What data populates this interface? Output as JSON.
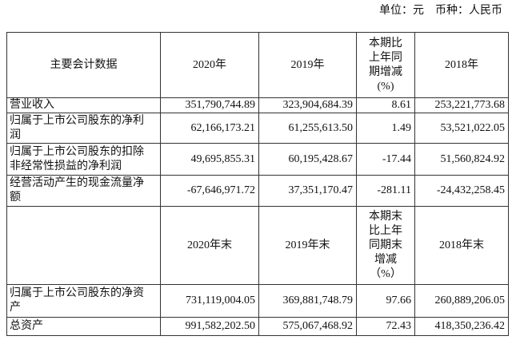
{
  "header": {
    "unit": "单位：元　币种：人民币"
  },
  "table": {
    "rows": [
      [
        "主要会计数据",
        "2020年",
        "2019年",
        "本期比上年同期增减(%)",
        "2018年"
      ],
      [
        "营业收入",
        "351,790,744.89",
        "323,904,684.39",
        "8.61",
        "253,221,773.68"
      ],
      [
        "归属于上市公司股东的净利润",
        "62,166,173.21",
        "61,255,613.50",
        "1.49",
        "53,521,022.05"
      ],
      [
        "归属于上市公司股东的扣除非经常性损益的净利润",
        "49,695,855.31",
        "60,195,428.67",
        "-17.44",
        "51,560,824.92"
      ],
      [
        "经营活动产生的现金流量净额",
        "-67,646,971.72",
        "37,351,170.47",
        "-281.11",
        "-24,432,258.45"
      ],
      [
        null,
        "2020年末",
        "2019年末",
        "本期末比上年同期末增减（%）",
        "2018年末"
      ],
      [
        "归属于上市公司股东的净资产",
        "731,119,004.05",
        "369,881,748.79",
        "97.66",
        "260,889,206.05"
      ],
      [
        "总资产",
        "991,582,202.50",
        "575,067,468.92",
        "72.43",
        "418,350,236.42"
      ]
    ]
  }
}
